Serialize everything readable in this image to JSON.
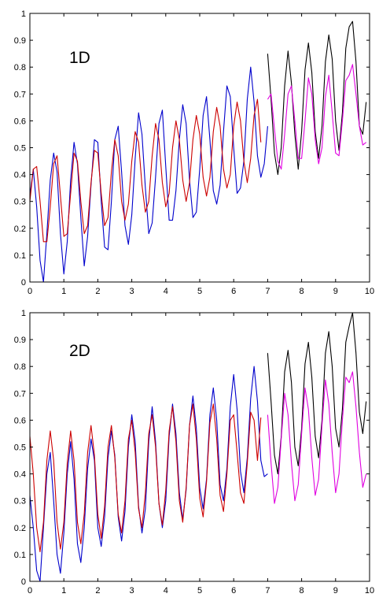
{
  "colors": {
    "blue": "#0000cc",
    "red": "#cc0000",
    "black": "#000000",
    "magenta": "#e000e0",
    "axes": "#000000",
    "background": "#ffffff"
  },
  "chart_data": [
    {
      "type": "line",
      "panel_label": "1D",
      "title": "",
      "xlabel": "",
      "ylabel": "",
      "xlim": [
        0,
        10
      ],
      "ylim": [
        0,
        1
      ],
      "grid": false,
      "x_ticks": [
        0,
        1,
        2,
        3,
        4,
        5,
        6,
        7,
        8,
        9,
        10
      ],
      "y_ticks": [
        0,
        0.1,
        0.2,
        0.3,
        0.4,
        0.5,
        0.6,
        0.7,
        0.8,
        0.9,
        1
      ],
      "series": [
        {
          "color": "blue",
          "x": [
            0.0,
            0.1,
            0.2,
            0.3,
            0.4,
            0.5,
            0.6,
            0.7,
            0.8,
            0.9,
            1.0,
            1.1,
            1.2,
            1.3,
            1.4,
            1.5,
            1.6,
            1.7,
            1.8,
            1.9,
            2.0,
            2.1,
            2.2,
            2.3,
            2.4,
            2.5,
            2.6,
            2.7,
            2.8,
            2.9,
            3.0,
            3.1,
            3.2,
            3.3,
            3.4,
            3.5,
            3.6,
            3.7,
            3.8,
            3.9,
            4.0,
            4.1,
            4.2,
            4.3,
            4.4,
            4.5,
            4.6,
            4.7,
            4.8,
            4.9,
            5.0,
            5.1,
            5.2,
            5.3,
            5.4,
            5.5,
            5.6,
            5.7,
            5.8,
            5.9,
            6.0,
            6.1,
            6.2,
            6.3,
            6.4,
            6.5,
            6.6,
            6.7,
            6.8,
            6.9,
            7.0
          ],
          "y": [
            0.32,
            0.42,
            0.28,
            0.08,
            0.0,
            0.18,
            0.38,
            0.48,
            0.41,
            0.18,
            0.03,
            0.15,
            0.38,
            0.52,
            0.44,
            0.24,
            0.06,
            0.17,
            0.36,
            0.53,
            0.52,
            0.3,
            0.13,
            0.12,
            0.3,
            0.53,
            0.58,
            0.41,
            0.21,
            0.14,
            0.25,
            0.46,
            0.63,
            0.55,
            0.35,
            0.18,
            0.22,
            0.39,
            0.59,
            0.64,
            0.43,
            0.23,
            0.23,
            0.34,
            0.53,
            0.66,
            0.59,
            0.38,
            0.24,
            0.26,
            0.42,
            0.62,
            0.69,
            0.53,
            0.34,
            0.29,
            0.36,
            0.56,
            0.73,
            0.69,
            0.5,
            0.33,
            0.35,
            0.45,
            0.68,
            0.8,
            0.67,
            0.47,
            0.39,
            0.44,
            0.58
          ]
        },
        {
          "color": "red",
          "x": [
            0.0,
            0.1,
            0.2,
            0.3,
            0.4,
            0.5,
            0.6,
            0.7,
            0.8,
            0.9,
            1.0,
            1.1,
            1.2,
            1.3,
            1.4,
            1.5,
            1.6,
            1.7,
            1.8,
            1.9,
            2.0,
            2.1,
            2.2,
            2.3,
            2.4,
            2.5,
            2.6,
            2.7,
            2.8,
            2.9,
            3.0,
            3.1,
            3.2,
            3.3,
            3.4,
            3.5,
            3.6,
            3.7,
            3.8,
            3.9,
            4.0,
            4.1,
            4.2,
            4.3,
            4.4,
            4.5,
            4.6,
            4.7,
            4.8,
            4.9,
            5.0,
            5.1,
            5.2,
            5.3,
            5.4,
            5.5,
            5.6,
            5.7,
            5.8,
            5.9,
            6.0,
            6.1,
            6.2,
            6.3,
            6.4,
            6.5,
            6.6,
            6.7,
            6.8
          ],
          "y": [
            0.3,
            0.42,
            0.43,
            0.3,
            0.15,
            0.15,
            0.28,
            0.44,
            0.47,
            0.32,
            0.17,
            0.18,
            0.33,
            0.48,
            0.45,
            0.3,
            0.18,
            0.21,
            0.37,
            0.49,
            0.48,
            0.33,
            0.21,
            0.24,
            0.41,
            0.53,
            0.47,
            0.3,
            0.23,
            0.29,
            0.45,
            0.56,
            0.52,
            0.36,
            0.26,
            0.3,
            0.47,
            0.59,
            0.53,
            0.37,
            0.28,
            0.33,
            0.5,
            0.6,
            0.53,
            0.38,
            0.3,
            0.37,
            0.53,
            0.62,
            0.55,
            0.39,
            0.32,
            0.39,
            0.56,
            0.65,
            0.58,
            0.42,
            0.35,
            0.4,
            0.58,
            0.67,
            0.6,
            0.45,
            0.37,
            0.46,
            0.62,
            0.68,
            0.52
          ]
        },
        {
          "color": "black",
          "x": [
            7.0,
            7.1,
            7.2,
            7.3,
            7.4,
            7.5,
            7.6,
            7.7,
            7.8,
            7.9,
            8.0,
            8.1,
            8.2,
            8.3,
            8.4,
            8.5,
            8.6,
            8.7,
            8.8,
            8.9,
            9.0,
            9.1,
            9.2,
            9.3,
            9.4,
            9.5,
            9.6,
            9.7,
            9.8,
            9.9
          ],
          "y": [
            0.85,
            0.68,
            0.48,
            0.4,
            0.5,
            0.73,
            0.86,
            0.74,
            0.55,
            0.42,
            0.56,
            0.79,
            0.89,
            0.78,
            0.56,
            0.46,
            0.58,
            0.82,
            0.92,
            0.83,
            0.6,
            0.49,
            0.63,
            0.87,
            0.95,
            0.97,
            0.82,
            0.58,
            0.55,
            0.67
          ]
        },
        {
          "color": "magenta",
          "x": [
            7.0,
            7.1,
            7.2,
            7.3,
            7.4,
            7.5,
            7.6,
            7.7,
            7.8,
            7.9,
            8.0,
            8.1,
            8.2,
            8.3,
            8.4,
            8.5,
            8.6,
            8.7,
            8.8,
            8.9,
            9.0,
            9.1,
            9.2,
            9.3,
            9.4,
            9.5,
            9.6,
            9.7,
            9.8,
            9.9
          ],
          "y": [
            0.68,
            0.7,
            0.57,
            0.45,
            0.42,
            0.55,
            0.7,
            0.73,
            0.6,
            0.46,
            0.46,
            0.6,
            0.76,
            0.7,
            0.53,
            0.44,
            0.5,
            0.69,
            0.77,
            0.63,
            0.48,
            0.47,
            0.6,
            0.75,
            0.77,
            0.81,
            0.7,
            0.58,
            0.51,
            0.52
          ]
        }
      ]
    },
    {
      "type": "line",
      "panel_label": "2D",
      "title": "",
      "xlabel": "",
      "ylabel": "",
      "xlim": [
        0,
        10
      ],
      "ylim": [
        0,
        1
      ],
      "grid": false,
      "x_ticks": [
        0,
        1,
        2,
        3,
        4,
        5,
        6,
        7,
        8,
        9,
        10
      ],
      "y_ticks": [
        0,
        0.1,
        0.2,
        0.3,
        0.4,
        0.5,
        0.6,
        0.7,
        0.8,
        0.9,
        1
      ],
      "series": [
        {
          "color": "blue",
          "x": [
            0.0,
            0.1,
            0.2,
            0.3,
            0.4,
            0.5,
            0.6,
            0.7,
            0.8,
            0.9,
            1.0,
            1.1,
            1.2,
            1.3,
            1.4,
            1.5,
            1.6,
            1.7,
            1.8,
            1.9,
            2.0,
            2.1,
            2.2,
            2.3,
            2.4,
            2.5,
            2.6,
            2.7,
            2.8,
            2.9,
            3.0,
            3.1,
            3.2,
            3.3,
            3.4,
            3.5,
            3.6,
            3.7,
            3.8,
            3.9,
            4.0,
            4.1,
            4.2,
            4.3,
            4.4,
            4.5,
            4.6,
            4.7,
            4.8,
            4.9,
            5.0,
            5.1,
            5.2,
            5.3,
            5.4,
            5.5,
            5.6,
            5.7,
            5.8,
            5.9,
            6.0,
            6.1,
            6.2,
            6.3,
            6.4,
            6.5,
            6.6,
            6.7,
            6.8,
            6.9,
            7.0
          ],
          "y": [
            0.32,
            0.2,
            0.04,
            0.0,
            0.2,
            0.4,
            0.48,
            0.3,
            0.1,
            0.03,
            0.18,
            0.4,
            0.52,
            0.38,
            0.14,
            0.07,
            0.2,
            0.42,
            0.53,
            0.45,
            0.2,
            0.13,
            0.24,
            0.46,
            0.56,
            0.47,
            0.24,
            0.15,
            0.26,
            0.5,
            0.62,
            0.52,
            0.28,
            0.18,
            0.27,
            0.52,
            0.65,
            0.52,
            0.29,
            0.2,
            0.3,
            0.54,
            0.66,
            0.55,
            0.33,
            0.23,
            0.34,
            0.58,
            0.69,
            0.57,
            0.35,
            0.27,
            0.38,
            0.62,
            0.72,
            0.6,
            0.36,
            0.3,
            0.42,
            0.65,
            0.77,
            0.64,
            0.41,
            0.33,
            0.46,
            0.68,
            0.8,
            0.67,
            0.45,
            0.39,
            0.4
          ]
        },
        {
          "color": "red",
          "x": [
            0.0,
            0.1,
            0.2,
            0.3,
            0.4,
            0.5,
            0.6,
            0.7,
            0.8,
            0.9,
            1.0,
            1.1,
            1.2,
            1.3,
            1.4,
            1.5,
            1.6,
            1.7,
            1.8,
            1.9,
            2.0,
            2.1,
            2.2,
            2.3,
            2.4,
            2.5,
            2.6,
            2.7,
            2.8,
            2.9,
            3.0,
            3.1,
            3.2,
            3.3,
            3.4,
            3.5,
            3.6,
            3.7,
            3.8,
            3.9,
            4.0,
            4.1,
            4.2,
            4.3,
            4.4,
            4.5,
            4.6,
            4.7,
            4.8,
            4.9,
            5.0,
            5.1,
            5.2,
            5.3,
            5.4,
            5.5,
            5.6,
            5.7,
            5.8,
            5.9,
            6.0,
            6.1,
            6.2,
            6.3,
            6.4,
            6.5,
            6.6,
            6.7,
            6.8
          ],
          "y": [
            0.54,
            0.4,
            0.2,
            0.11,
            0.22,
            0.45,
            0.56,
            0.45,
            0.22,
            0.12,
            0.22,
            0.44,
            0.56,
            0.45,
            0.22,
            0.14,
            0.25,
            0.48,
            0.58,
            0.47,
            0.25,
            0.16,
            0.28,
            0.5,
            0.58,
            0.46,
            0.25,
            0.18,
            0.3,
            0.53,
            0.6,
            0.48,
            0.27,
            0.2,
            0.33,
            0.55,
            0.62,
            0.5,
            0.29,
            0.21,
            0.34,
            0.56,
            0.65,
            0.52,
            0.3,
            0.22,
            0.35,
            0.58,
            0.66,
            0.53,
            0.31,
            0.24,
            0.37,
            0.59,
            0.66,
            0.53,
            0.32,
            0.26,
            0.4,
            0.6,
            0.62,
            0.48,
            0.33,
            0.29,
            0.44,
            0.63,
            0.6,
            0.45,
            0.61
          ]
        },
        {
          "color": "black",
          "x": [
            7.0,
            7.1,
            7.2,
            7.3,
            7.4,
            7.5,
            7.6,
            7.7,
            7.8,
            7.9,
            8.0,
            8.1,
            8.2,
            8.3,
            8.4,
            8.5,
            8.6,
            8.7,
            8.8,
            8.9,
            9.0,
            9.1,
            9.2,
            9.3,
            9.4,
            9.5,
            9.6,
            9.7,
            9.8,
            9.9
          ],
          "y": [
            0.85,
            0.67,
            0.47,
            0.4,
            0.54,
            0.78,
            0.86,
            0.74,
            0.5,
            0.43,
            0.57,
            0.81,
            0.89,
            0.76,
            0.54,
            0.46,
            0.6,
            0.85,
            0.93,
            0.8,
            0.57,
            0.5,
            0.64,
            0.89,
            0.95,
            1.0,
            0.85,
            0.63,
            0.55,
            0.67
          ]
        },
        {
          "color": "magenta",
          "x": [
            7.0,
            7.1,
            7.2,
            7.3,
            7.4,
            7.5,
            7.6,
            7.7,
            7.8,
            7.9,
            8.0,
            8.1,
            8.2,
            8.3,
            8.4,
            8.5,
            8.6,
            8.7,
            8.8,
            8.9,
            9.0,
            9.1,
            9.2,
            9.3,
            9.4,
            9.5,
            9.6,
            9.7,
            9.8,
            9.9
          ],
          "y": [
            0.62,
            0.44,
            0.29,
            0.35,
            0.53,
            0.7,
            0.62,
            0.44,
            0.3,
            0.36,
            0.55,
            0.72,
            0.64,
            0.46,
            0.32,
            0.38,
            0.58,
            0.75,
            0.66,
            0.48,
            0.33,
            0.4,
            0.6,
            0.76,
            0.74,
            0.78,
            0.65,
            0.48,
            0.35,
            0.4
          ]
        }
      ]
    }
  ]
}
